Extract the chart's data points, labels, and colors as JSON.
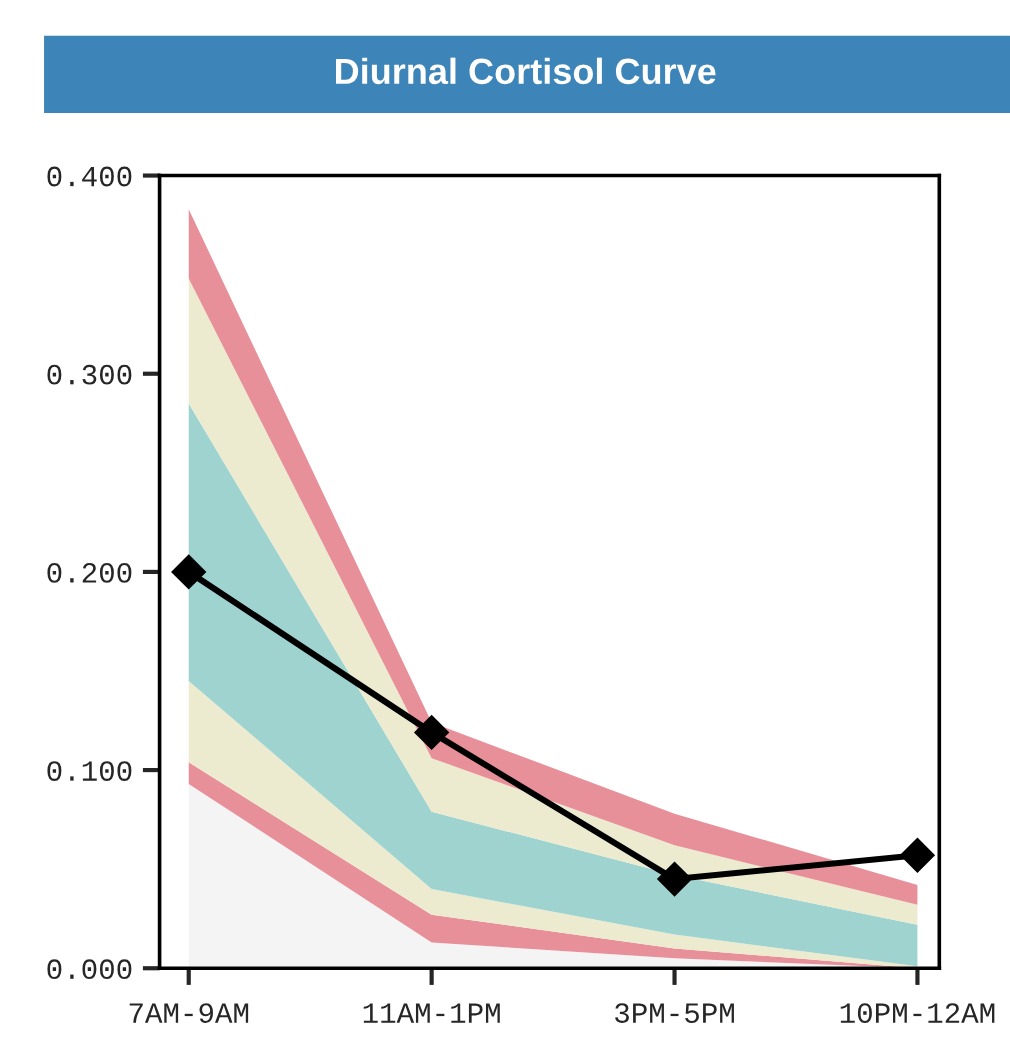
{
  "chart_data": {
    "type": "area",
    "title": "Diurnal Cortisol Curve",
    "categories": [
      "7AM-9AM",
      "11AM-1PM",
      "3PM-5PM",
      "10PM-12AM"
    ],
    "stacked": true,
    "series": [
      {
        "color": "#f4f4f4",
        "values": [
          0.093,
          0.013,
          0.005,
          0.0
        ]
      },
      {
        "color": "#e8909a",
        "values": [
          0.011,
          0.014,
          0.005,
          0.0
        ]
      },
      {
        "color": "#ecebd0",
        "values": [
          0.041,
          0.013,
          0.007,
          0.001
        ]
      },
      {
        "color": "#9fd3d0",
        "values": [
          0.14,
          0.039,
          0.03,
          0.021
        ]
      },
      {
        "color": "#ecebd0",
        "values": [
          0.063,
          0.027,
          0.015,
          0.01
        ]
      },
      {
        "color": "#e8909a",
        "values": [
          0.035,
          0.018,
          0.016,
          0.01
        ]
      },
      {
        "type": "line",
        "color": "#000000",
        "values": [
          0.2,
          0.119,
          0.045,
          0.057
        ],
        "marker": "diamond"
      }
    ],
    "line_style": "solid",
    "ylim": [
      0,
      0.4
    ],
    "yticks": [
      {
        "value": 0,
        "label": "0.000"
      },
      {
        "value": 0.1,
        "label": "0.100"
      },
      {
        "value": 0.2,
        "label": "0.200"
      },
      {
        "value": 0.3,
        "label": "0.300"
      },
      {
        "value": 0.4,
        "label": "0.400"
      }
    ],
    "grid": false,
    "legend": false
  }
}
